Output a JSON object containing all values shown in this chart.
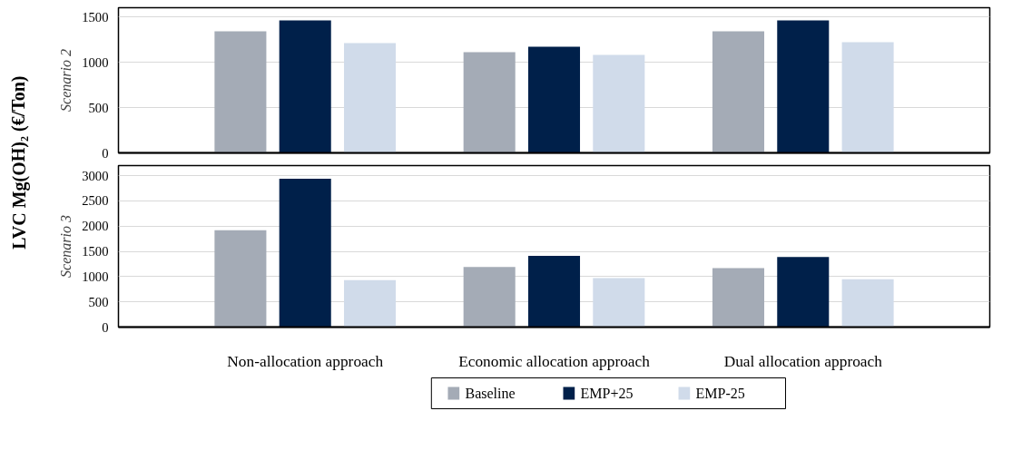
{
  "chart_data": [
    {
      "type": "bar",
      "ylabel": "Scenario 2",
      "annotations": [
        "LVC Mg(OH)₂ (€/Ton)"
      ],
      "categories": [
        null,
        null,
        null
      ],
      "ylim": [
        0,
        1600
      ],
      "yticks": [
        0,
        500,
        1000,
        1500
      ],
      "grid": "y",
      "tick_labels": "y",
      "series": [
        {
          "color": "#a4abb6",
          "values": [
            1340,
            1110,
            1340
          ]
        },
        {
          "color": "#00204a",
          "values": [
            1460,
            1170,
            1460
          ]
        },
        {
          "color": "#d0dbea",
          "values": [
            1210,
            1080,
            1220
          ]
        }
      ]
    },
    {
      "type": "bar",
      "ylabel": "Scenario 3",
      "categories": [
        "Non-allocation approach",
        "Economic allocation approach",
        "Dual allocation approach"
      ],
      "ylim": [
        0,
        3200
      ],
      "yticks": [
        0,
        500,
        1000,
        1500,
        2000,
        2500,
        3000
      ],
      "grid": "y",
      "legend": "bottom",
      "series": [
        {
          "name": "Baseline",
          "color": "#a4abb6",
          "values": [
            1920,
            1190,
            1170
          ]
        },
        {
          "name": "EMP+25",
          "color": "#00204a",
          "values": [
            2940,
            1410,
            1390
          ]
        },
        {
          "name": "EMP-25",
          "color": "#d0dbea",
          "values": [
            930,
            970,
            950
          ]
        }
      ]
    }
  ]
}
